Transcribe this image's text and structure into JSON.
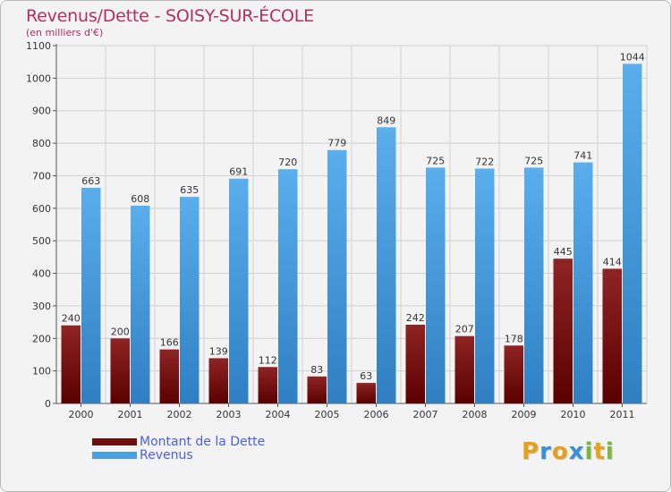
{
  "header": {
    "title": "Revenus/Dette - SOISY-SUR-ÉCOLE",
    "subtitle": "(en milliers d'€)"
  },
  "colors": {
    "dette": "#7a1414",
    "revenus": "#4a9fe0",
    "title": "#b52e62"
  },
  "logo": {
    "letters": [
      {
        "ch": "P",
        "color": "#e5a11e"
      },
      {
        "ch": "r",
        "color": "#3a8fd8"
      },
      {
        "ch": "o",
        "color": "#e5a11e"
      },
      {
        "ch": "x",
        "color": "#3a8fd8"
      },
      {
        "ch": "i",
        "color": "#78b83a"
      },
      {
        "ch": "t",
        "color": "#e5a11e"
      },
      {
        "ch": "i",
        "color": "#78b83a"
      }
    ]
  },
  "chart_data": {
    "type": "bar",
    "title": "Revenus/Dette - SOISY-SUR-ÉCOLE",
    "subtitle": "(en milliers d'€)",
    "xlabel": "",
    "ylabel": "",
    "ylim": [
      0,
      1100
    ],
    "yticks": [
      0,
      100,
      200,
      300,
      400,
      500,
      600,
      700,
      800,
      900,
      1000,
      1100
    ],
    "grid": true,
    "legend_position": "bottom-left",
    "categories": [
      "2000",
      "2001",
      "2002",
      "2003",
      "2004",
      "2005",
      "2006",
      "2007",
      "2008",
      "2009",
      "2010",
      "2011"
    ],
    "series": [
      {
        "name": "Montant de la Dette",
        "color": "#7a1414",
        "values": [
          240,
          200,
          166,
          139,
          112,
          83,
          63,
          242,
          207,
          178,
          445,
          414
        ]
      },
      {
        "name": "Revenus",
        "color": "#4a9fe0",
        "values": [
          663,
          608,
          635,
          691,
          720,
          779,
          849,
          725,
          722,
          725,
          741,
          1044
        ]
      }
    ]
  }
}
